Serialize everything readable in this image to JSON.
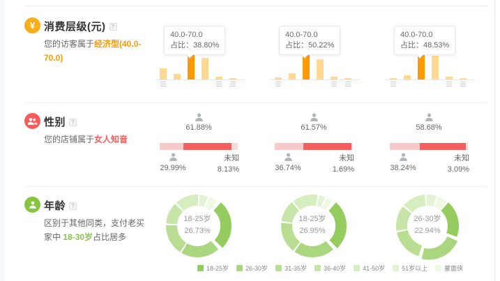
{
  "colors": {
    "orange_accent": "#ff9900",
    "orange_light": "#ffd894",
    "orange_icon": "#fbae17",
    "red_icon": "#fa5a5a",
    "gender_female": "#fa5f5f",
    "gender_male": "#f9caca",
    "gender_unknown": "#fbd9d9",
    "green_icon": "#87c540",
    "donut_palette": [
      "#95cc60",
      "#a9d67e",
      "#b9de93",
      "#c7e5a9",
      "#d6edc0",
      "#e3f2d3",
      "#eef8e3"
    ]
  },
  "sections": {
    "consumption": {
      "title": "消费层级(元)",
      "help": "?",
      "icon_glyph": "¥",
      "desc_prefix": "您的访客属于",
      "desc_highlight": "经济型(40.0-70.0)",
      "tooltip_label": "占比：",
      "charts": [
        {
          "tooltip_range": "40.0-70.0",
          "tooltip_value": "38.80%",
          "bars_rel": [
            42,
            20,
            100,
            82,
            11,
            4
          ],
          "highlight_index": 2,
          "tick_indexes": [
            0,
            4,
            5
          ]
        },
        {
          "tooltip_range": "40.0-70.0",
          "tooltip_value": "50.22%",
          "bars_rel": [
            7,
            24,
            100,
            76,
            10,
            4
          ],
          "highlight_index": 2,
          "tick_indexes": [
            0,
            4,
            5
          ]
        },
        {
          "tooltip_range": "40.0-70.0",
          "tooltip_value": "48.53%",
          "bars_rel": [
            6,
            16,
            100,
            90,
            11,
            6
          ],
          "highlight_index": 2,
          "tick_indexes": [
            0,
            4,
            5
          ]
        }
      ]
    },
    "gender": {
      "title": "性别",
      "help": "?",
      "desc_prefix": "您的店铺属于",
      "desc_highlight": "女人知音",
      "charts": [
        {
          "female": 61.88,
          "male": 29.99,
          "unknown": 8.13,
          "female_label": "61.88%",
          "male_label": "29.99%",
          "unknown_title": "未知",
          "unknown_label": "8.13%"
        },
        {
          "female": 61.57,
          "male": 36.74,
          "unknown": 1.69,
          "female_label": "61.57%",
          "male_label": "36.74%",
          "unknown_title": "未知",
          "unknown_label": "1.69%"
        },
        {
          "female": 58.68,
          "male": 38.24,
          "unknown": 3.09,
          "female_label": "58.68%",
          "male_label": "38.24%",
          "unknown_title": "未知",
          "unknown_label": "3.09%"
        }
      ]
    },
    "age": {
      "title": "年龄",
      "help": "?",
      "desc_line1": "区别于其他同类，支付老买家中",
      "desc_highlight": "18-30岁",
      "desc_suffix": "占比居多",
      "legend": [
        "18-25岁",
        "26-30岁",
        "31-35岁",
        "36-40岁",
        "41-50岁",
        "51岁以上",
        "蒙面侠"
      ],
      "charts": [
        {
          "center_label": "18-25岁",
          "center_value": "26.73%",
          "values_est": [
            26.73,
            21,
            17,
            12,
            13,
            5,
            5.27
          ],
          "exploded_index": 0
        },
        {
          "center_label": "18-25岁",
          "center_value": "26.95%",
          "values_est": [
            26.95,
            22,
            17,
            12,
            14,
            4,
            4.05
          ],
          "exploded_index": 0
        },
        {
          "center_label": "26-30岁",
          "center_value": "22.94%",
          "values_est": [
            20,
            22.94,
            18,
            14,
            13,
            6,
            6.06
          ],
          "exploded_index": 1
        }
      ]
    }
  },
  "chart_data": [
    {
      "type": "bar",
      "panel": "消费层级(元) chart 1",
      "highlighted_category": "40.0-70.0",
      "highlighted_share": "38.80%",
      "values_relative_to_max": [
        42,
        20,
        100,
        82,
        11,
        4
      ],
      "note": "x tick labels illegible in source"
    },
    {
      "type": "bar",
      "panel": "消费层级(元) chart 2",
      "highlighted_category": "40.0-70.0",
      "highlighted_share": "50.22%",
      "values_relative_to_max": [
        7,
        24,
        100,
        76,
        10,
        4
      ]
    },
    {
      "type": "bar",
      "panel": "消费层级(元) chart 3",
      "highlighted_category": "40.0-70.0",
      "highlighted_share": "48.53%",
      "values_relative_to_max": [
        6,
        16,
        100,
        90,
        11,
        6
      ]
    },
    {
      "type": "bar",
      "subtype": "horizontal-stacked",
      "panel": "性别 chart 1",
      "categories": [
        "男",
        "女",
        "未知"
      ],
      "values": [
        29.99,
        61.88,
        8.13
      ]
    },
    {
      "type": "bar",
      "subtype": "horizontal-stacked",
      "panel": "性别 chart 2",
      "categories": [
        "男",
        "女",
        "未知"
      ],
      "values": [
        36.74,
        61.57,
        1.69
      ]
    },
    {
      "type": "bar",
      "subtype": "horizontal-stacked",
      "panel": "性别 chart 3",
      "categories": [
        "男",
        "女",
        "未知"
      ],
      "values": [
        38.24,
        58.68,
        3.09
      ]
    },
    {
      "type": "pie",
      "subtype": "donut",
      "panel": "年龄 chart 1",
      "categories": [
        "18-25岁",
        "26-30岁",
        "31-35岁",
        "36-40岁",
        "41-50岁",
        "51岁以上",
        "蒙面侠"
      ],
      "values_est": [
        26.73,
        21,
        17,
        12,
        13,
        5,
        5.27
      ],
      "labeled_value": {
        "category": "18-25岁",
        "value": 26.73
      }
    },
    {
      "type": "pie",
      "subtype": "donut",
      "panel": "年龄 chart 2",
      "categories": [
        "18-25岁",
        "26-30岁",
        "31-35岁",
        "36-40岁",
        "41-50岁",
        "51岁以上",
        "蒙面侠"
      ],
      "values_est": [
        26.95,
        22,
        17,
        12,
        14,
        4,
        4.05
      ],
      "labeled_value": {
        "category": "18-25岁",
        "value": 26.95
      }
    },
    {
      "type": "pie",
      "subtype": "donut",
      "panel": "年龄 chart 3",
      "categories": [
        "18-25岁",
        "26-30岁",
        "31-35岁",
        "36-40岁",
        "41-50岁",
        "51岁以上",
        "蒙面侠"
      ],
      "values_est": [
        20,
        22.94,
        18,
        14,
        13,
        6,
        6.06
      ],
      "labeled_value": {
        "category": "26-30岁",
        "value": 22.94
      }
    }
  ]
}
